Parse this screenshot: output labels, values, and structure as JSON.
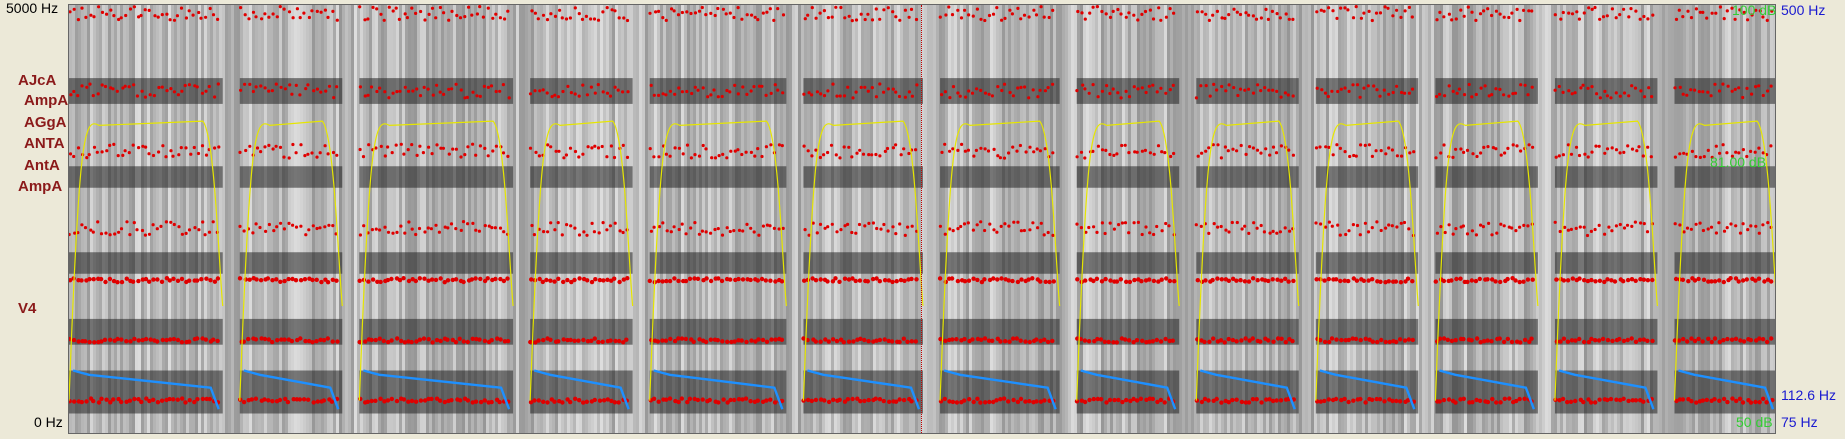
{
  "left_axis": {
    "freq_top": "5000 Hz",
    "freq_bottom": "0 Hz"
  },
  "tiers": [
    {
      "label": "AJcA"
    },
    {
      "label": "AmpA"
    },
    {
      "label": "AGgA"
    },
    {
      "label": "ANTA"
    },
    {
      "label": "AntA"
    },
    {
      "label": "AmpA"
    },
    {
      "label": "V4"
    }
  ],
  "right_axis": {
    "intensity_top": "100 dB",
    "intensity_mid": "81.00 dB",
    "intensity_bottom": "50 dB",
    "pitch_top": "500 Hz",
    "pitch_current": "112.6 Hz",
    "pitch_bottom": "75 Hz"
  },
  "colors": {
    "formant": "#e00000",
    "pitch": "#1e90ff",
    "intensity": "#e6e600",
    "intensity_axis": "#33cc33",
    "pitch_axis": "#1a1ad0",
    "tier_label": "#8b1a1a"
  },
  "chart_data": {
    "type": "spectrogram",
    "x_unit": "segment",
    "segments": [
      {
        "start": 0.0,
        "end": 0.09
      },
      {
        "start": 0.1,
        "end": 0.16
      },
      {
        "start": 0.17,
        "end": 0.26
      },
      {
        "start": 0.27,
        "end": 0.33
      },
      {
        "start": 0.34,
        "end": 0.42
      },
      {
        "start": 0.43,
        "end": 0.5
      },
      {
        "start": 0.51,
        "end": 0.58
      },
      {
        "start": 0.59,
        "end": 0.65
      },
      {
        "start": 0.66,
        "end": 0.72
      },
      {
        "start": 0.73,
        "end": 0.79
      },
      {
        "start": 0.8,
        "end": 0.86
      },
      {
        "start": 0.87,
        "end": 0.93
      },
      {
        "start": 0.94,
        "end": 1.0
      }
    ],
    "freq_range_hz": [
      0,
      5000
    ],
    "intensity_range_db": [
      50,
      100
    ],
    "pitch_range_hz": [
      75,
      500
    ]
  }
}
